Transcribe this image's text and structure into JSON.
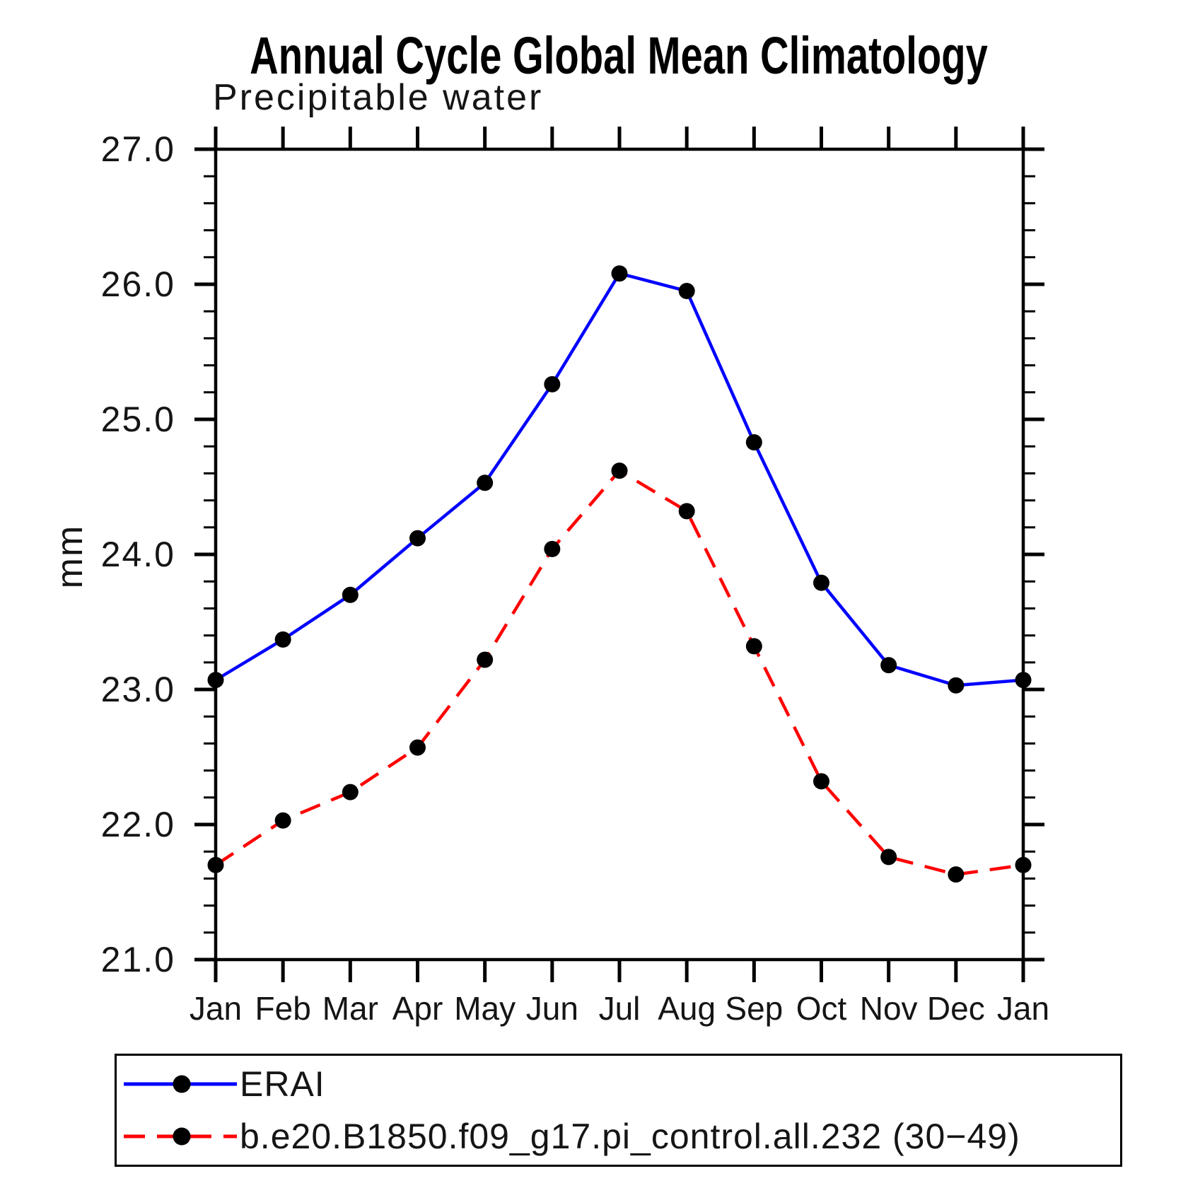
{
  "chart_data": {
    "type": "line",
    "title": "Annual Cycle Global Mean Climatology",
    "subtitle": "Precipitable water",
    "ylabel": "mm",
    "xlabel": "",
    "categories": [
      "Jan",
      "Feb",
      "Mar",
      "Apr",
      "May",
      "Jun",
      "Jul",
      "Aug",
      "Sep",
      "Oct",
      "Nov",
      "Dec",
      "Jan"
    ],
    "ylim": [
      21.0,
      27.0
    ],
    "ytick_major_step": 1.0,
    "ytick_minor_step": 0.2,
    "ytick_labels": [
      "21.0",
      "22.0",
      "23.0",
      "24.0",
      "25.0",
      "26.0",
      "27.0"
    ],
    "grid": false,
    "legend_position": "bottom",
    "axis_color": "#000000",
    "marker_color": "#000000",
    "series": [
      {
        "name": "ERAI",
        "color": "#0000ff",
        "line_style": "solid",
        "marker": "circle",
        "values": [
          23.07,
          23.37,
          23.7,
          24.12,
          24.53,
          25.26,
          26.08,
          25.95,
          24.83,
          23.79,
          23.18,
          23.03,
          23.07
        ]
      },
      {
        "name": "b.e20.B1850.f09_g17.pi_control.all.232 (30−49)",
        "color": "#ff0000",
        "line_style": "dashed",
        "marker": "circle",
        "values": [
          21.7,
          22.03,
          22.24,
          22.57,
          23.22,
          24.04,
          24.62,
          24.32,
          23.32,
          22.32,
          21.76,
          21.63,
          21.7
        ]
      }
    ]
  }
}
